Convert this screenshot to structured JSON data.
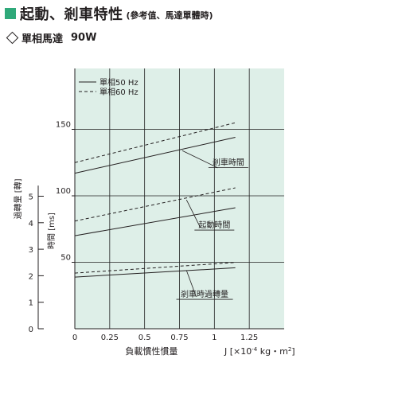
{
  "header": {
    "title": "起動、剎車特性",
    "note": "(參考值、馬達單體時)",
    "accent_color": "#2fa97a"
  },
  "subtitle": {
    "label": "單相馬達",
    "model": "90W"
  },
  "chart_data": {
    "type": "line",
    "plot_background": "#deefe8",
    "grid": true,
    "legend": {
      "position": "top-left",
      "entries": [
        {
          "label": "單相50 Hz",
          "style": "solid"
        },
        {
          "label": "單相60 Hz",
          "style": "dashed"
        }
      ]
    },
    "xaxis": {
      "label_left": "負載慣性慣量",
      "label_right_prefix": "J [×10",
      "label_right_exp": "-4",
      "label_right_suffix": " kg・m",
      "label_right_sq": "2",
      "label_right_end": "]",
      "range": [
        0,
        1.5
      ],
      "ticks": [
        {
          "value": 0,
          "label": "0"
        },
        {
          "value": 0.25,
          "label": "0.25"
        },
        {
          "value": 0.5,
          "label": "0.5"
        },
        {
          "value": 0.75,
          "label": "0.75"
        },
        {
          "value": 1,
          "label": "1"
        },
        {
          "value": 1.25,
          "label": "1.25"
        }
      ]
    },
    "y_time_axis": {
      "label": "時間 [ms]",
      "range": [
        0,
        200
      ],
      "ticks": [
        {
          "value": 50,
          "label": "50"
        },
        {
          "value": 100,
          "label": "100"
        },
        {
          "value": 150,
          "label": "150"
        }
      ]
    },
    "y_overrun_axis": {
      "label": "過轉量 [轉]",
      "range": [
        0,
        6
      ],
      "ticks": [
        {
          "value": 0,
          "label": "0"
        },
        {
          "value": 1,
          "label": "1"
        },
        {
          "value": 2,
          "label": "2"
        },
        {
          "value": 3,
          "label": "3"
        },
        {
          "value": 4,
          "label": "4"
        },
        {
          "value": 5,
          "label": "5"
        }
      ]
    },
    "series": [
      {
        "group": "braking_time",
        "style": "solid",
        "axis": "time",
        "x": [
          0,
          1.15
        ],
        "y": [
          117,
          144
        ]
      },
      {
        "group": "braking_time",
        "style": "dashed",
        "axis": "time",
        "x": [
          0,
          1.15
        ],
        "y": [
          125,
          155
        ]
      },
      {
        "group": "starting_time",
        "style": "solid",
        "axis": "time",
        "x": [
          0,
          1.15
        ],
        "y": [
          70,
          91
        ]
      },
      {
        "group": "starting_time",
        "style": "dashed",
        "axis": "time",
        "x": [
          0,
          1.15
        ],
        "y": [
          81,
          106
        ]
      },
      {
        "group": "braking_overrun",
        "style": "solid",
        "axis": "overrun",
        "x": [
          0,
          1.15
        ],
        "y": [
          1.95,
          2.3
        ]
      },
      {
        "group": "braking_overrun",
        "style": "dashed",
        "axis": "overrun",
        "x": [
          0,
          1.15
        ],
        "y": [
          2.1,
          2.5
        ]
      }
    ],
    "annotations": [
      {
        "label": "剎車時間",
        "x": 1.1,
        "y": 123,
        "axis": "time",
        "pointer_from": [
          1.025,
          121
        ],
        "pointer_to": [
          0.77,
          134
        ]
      },
      {
        "label": "起動時間",
        "x": 1.0,
        "y": 76,
        "axis": "time",
        "pointer_from": [
          0.9,
          76
        ],
        "pointer_to": [
          0.8,
          97
        ]
      },
      {
        "label": "剎車時過轉量",
        "x": 0.93,
        "y": 1.2,
        "axis": "overrun",
        "pointer_from": [
          0.87,
          1.2
        ],
        "pointer_to": [
          0.8,
          2.2
        ]
      }
    ]
  }
}
